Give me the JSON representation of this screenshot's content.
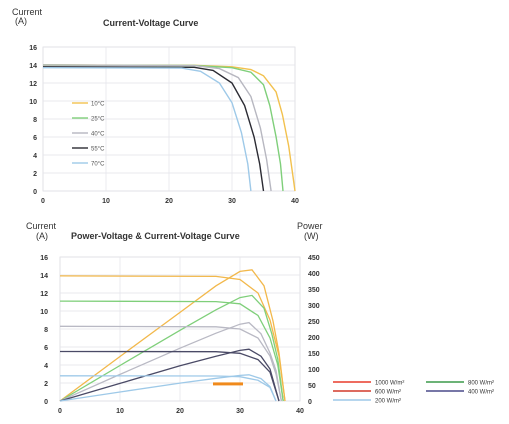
{
  "charts": [
    {
      "chart_data": {
        "type": "line",
        "title": "Current-Voltage Curve",
        "ylabel_lines": [
          "Current",
          "(A)"
        ],
        "xlabel": "",
        "xlim": [
          0,
          40
        ],
        "ylim": [
          0,
          16
        ],
        "x_ticks": [
          0,
          10,
          20,
          30,
          40
        ],
        "y_ticks": [
          0,
          2,
          4,
          6,
          8,
          10,
          12,
          14,
          16
        ],
        "grid": true,
        "legend_position": "left",
        "series": [
          {
            "name": "10°C",
            "color": "#f2c14e",
            "points": [
              [
                0,
                14.0
              ],
              [
                24,
                13.97
              ],
              [
                30,
                13.8
              ],
              [
                33,
                13.5
              ],
              [
                35,
                12.8
              ],
              [
                37,
                11.0
              ],
              [
                38,
                8.5
              ],
              [
                39,
                5.0
              ],
              [
                39.6,
                2.0
              ],
              [
                40,
                0
              ]
            ]
          },
          {
            "name": "25°C",
            "color": "#7fcf7a",
            "points": [
              [
                0,
                14.0
              ],
              [
                24,
                13.95
              ],
              [
                30,
                13.7
              ],
              [
                33,
                13.2
              ],
              [
                35,
                11.8
              ],
              [
                36,
                9.5
              ],
              [
                37,
                6.0
              ],
              [
                37.7,
                3.0
              ],
              [
                38.1,
                0
              ]
            ]
          },
          {
            "name": "40°C",
            "color": "#b7b7c0",
            "points": [
              [
                0,
                14.0
              ],
              [
                24,
                13.93
              ],
              [
                28,
                13.6
              ],
              [
                31,
                12.6
              ],
              [
                33,
                10.5
              ],
              [
                34.5,
                7.0
              ],
              [
                35.5,
                3.5
              ],
              [
                36.2,
                0
              ]
            ]
          },
          {
            "name": "55°C",
            "color": "#2b2b33",
            "points": [
              [
                0,
                13.8
              ],
              [
                24,
                13.75
              ],
              [
                27,
                13.4
              ],
              [
                30,
                12.0
              ],
              [
                32,
                9.5
              ],
              [
                33.5,
                6.0
              ],
              [
                34.4,
                3.0
              ],
              [
                35,
                0
              ]
            ]
          },
          {
            "name": "70°C",
            "color": "#9ec9e8",
            "points": [
              [
                0,
                13.7
              ],
              [
                22,
                13.65
              ],
              [
                25,
                13.3
              ],
              [
                28,
                12.0
              ],
              [
                30,
                9.8
              ],
              [
                31.5,
                6.5
              ],
              [
                32.5,
                3.0
              ],
              [
                33,
                0
              ]
            ]
          }
        ]
      }
    },
    {
      "chart_data": {
        "type": "line",
        "title": "Power-Voltage & Current-Voltage Curve",
        "ylabel_lines": [
          "Current",
          "(A)"
        ],
        "y2label_lines": [
          "Power",
          "(W)"
        ],
        "xlabel": "",
        "xlim": [
          0,
          40
        ],
        "ylim": [
          0,
          16
        ],
        "y2lim": [
          0,
          450
        ],
        "x_ticks": [
          0,
          10,
          20,
          30,
          40
        ],
        "y_ticks": [
          0,
          2,
          4,
          6,
          8,
          10,
          12,
          14,
          16
        ],
        "y2_ticks": [
          0,
          50,
          100,
          150,
          200,
          250,
          300,
          350,
          400,
          450
        ],
        "grid": true,
        "legend_position": "bottom-right",
        "series": [
          {
            "name": "1000 W/m²",
            "color": "#f2b84b",
            "current": [
              [
                0,
                13.9
              ],
              [
                26,
                13.85
              ],
              [
                30,
                13.5
              ],
              [
                33,
                12.0
              ],
              [
                35,
                9.0
              ],
              [
                36.5,
                5.0
              ],
              [
                37.5,
                0
              ]
            ],
            "power": [
              [
                0,
                0
              ],
              [
                10,
                139
              ],
              [
                20,
                277
              ],
              [
                26,
                360
              ],
              [
                30,
                405
              ],
              [
                32,
                410
              ],
              [
                34,
                360
              ],
              [
                35.5,
                250
              ],
              [
                36.5,
                150
              ],
              [
                37.5,
                0
              ]
            ]
          },
          {
            "name": "800 W/m²",
            "color": "#7fcf7a",
            "current": [
              [
                0,
                11.1
              ],
              [
                26,
                11.05
              ],
              [
                30,
                10.8
              ],
              [
                33,
                9.5
              ],
              [
                35,
                7.0
              ],
              [
                36.3,
                4.0
              ],
              [
                37.2,
                0
              ]
            ],
            "power": [
              [
                0,
                0
              ],
              [
                10,
                111
              ],
              [
                20,
                221
              ],
              [
                26,
                285
              ],
              [
                30,
                323
              ],
              [
                32,
                330
              ],
              [
                34,
                290
              ],
              [
                35.3,
                210
              ],
              [
                36.3,
                130
              ],
              [
                37.2,
                0
              ]
            ]
          },
          {
            "name": "600 W/m²",
            "color": "#b9b9c4",
            "current": [
              [
                0,
                8.3
              ],
              [
                26,
                8.25
              ],
              [
                30,
                8.0
              ],
              [
                33,
                7.0
              ],
              [
                35,
                5.0
              ],
              [
                36,
                3.0
              ],
              [
                36.9,
                0
              ]
            ],
            "power": [
              [
                0,
                0
              ],
              [
                10,
                83
              ],
              [
                20,
                165
              ],
              [
                26,
                212
              ],
              [
                30,
                240
              ],
              [
                31.5,
                245
              ],
              [
                33.5,
                210
              ],
              [
                35,
                150
              ],
              [
                36,
                95
              ],
              [
                36.9,
                0
              ]
            ]
          },
          {
            "name": "400 W/m²",
            "color": "#4a4a66",
            "current": [
              [
                0,
                5.5
              ],
              [
                26,
                5.48
              ],
              [
                30,
                5.3
              ],
              [
                33,
                4.6
              ],
              [
                35,
                3.2
              ],
              [
                36.5,
                0
              ]
            ],
            "power": [
              [
                0,
                0
              ],
              [
                10,
                55
              ],
              [
                20,
                110
              ],
              [
                26,
                140
              ],
              [
                30,
                158
              ],
              [
                31.5,
                162
              ],
              [
                33.5,
                140
              ],
              [
                35,
                100
              ],
              [
                36.5,
                0
              ]
            ]
          },
          {
            "name": "200 W/m²",
            "color": "#9ec9e8",
            "current": [
              [
                0,
                2.8
              ],
              [
                26,
                2.78
              ],
              [
                30,
                2.7
              ],
              [
                33,
                2.3
              ],
              [
                35,
                1.5
              ],
              [
                36,
                0
              ]
            ],
            "power": [
              [
                0,
                0
              ],
              [
                10,
                28
              ],
              [
                20,
                56
              ],
              [
                26,
                71
              ],
              [
                30,
                80
              ],
              [
                31.5,
                82
              ],
              [
                33.5,
                70
              ],
              [
                35,
                45
              ],
              [
                36,
                0
              ]
            ]
          }
        ],
        "annotation_color": "#f08a1c"
      }
    }
  ]
}
